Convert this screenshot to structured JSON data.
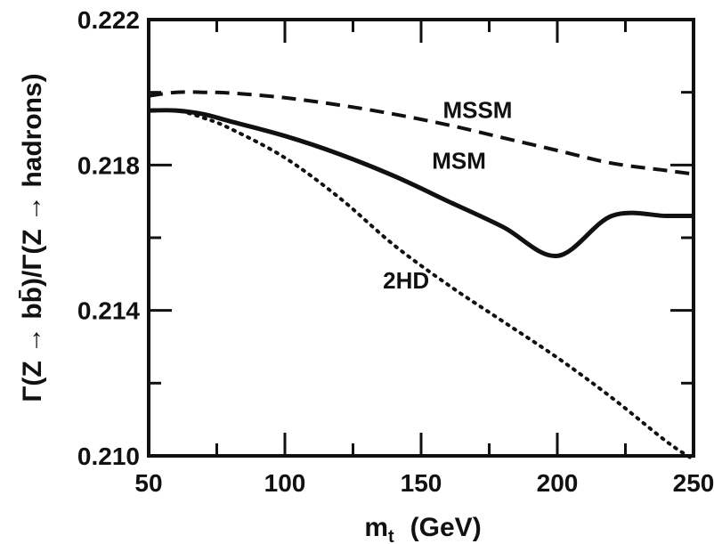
{
  "chart_data": {
    "type": "line",
    "xlabel": "m_t (GeV)",
    "xlabel_main": "m",
    "xlabel_sub": "t",
    "xlabel_unit": "(GeV)",
    "ylabel": "Γ(Z → bb̄)/Γ(Z → hadrons)",
    "xlim": [
      50,
      250
    ],
    "ylim": [
      0.21,
      0.222
    ],
    "xticks": [
      50,
      100,
      150,
      200,
      250
    ],
    "xtick_labels": [
      "50",
      "100",
      "150",
      "200",
      "250"
    ],
    "yticks": [
      0.21,
      0.214,
      0.218,
      0.222
    ],
    "ytick_labels": [
      "0.210",
      "0.214",
      "0.218",
      "0.222"
    ],
    "grid": false,
    "series": [
      {
        "name": "MSSM",
        "style": "dashed",
        "label_at": [
          158,
          0.2193
        ],
        "x": [
          50,
          60,
          70,
          80,
          100,
          120,
          140,
          160,
          180,
          200,
          220,
          240,
          250
        ],
        "y": [
          0.2199,
          0.22,
          0.22,
          0.21998,
          0.21985,
          0.21965,
          0.2194,
          0.2191,
          0.21875,
          0.2184,
          0.21805,
          0.21785,
          0.21775
        ]
      },
      {
        "name": "MSM",
        "style": "solid",
        "label_at": [
          154,
          0.2179
        ],
        "x": [
          50,
          60,
          70,
          80,
          100,
          120,
          140,
          160,
          180,
          200,
          220,
          240,
          250
        ],
        "y": [
          0.2195,
          0.2195,
          0.2194,
          0.2192,
          0.2188,
          0.2183,
          0.2177,
          0.217,
          0.2163,
          0.2155,
          0.2166,
          0.2166,
          0.2166
        ]
      },
      {
        "name": "2HD",
        "style": "dotted",
        "label_at": [
          136,
          0.2146
        ],
        "x": [
          50,
          60,
          70,
          80,
          100,
          120,
          140,
          160,
          180,
          200,
          220,
          240,
          250
        ],
        "y": [
          0.2195,
          0.2195,
          0.2193,
          0.219,
          0.2182,
          0.2171,
          0.2158,
          0.2147,
          0.2137,
          0.2127,
          0.2116,
          0.2104,
          0.2099
        ]
      }
    ]
  }
}
